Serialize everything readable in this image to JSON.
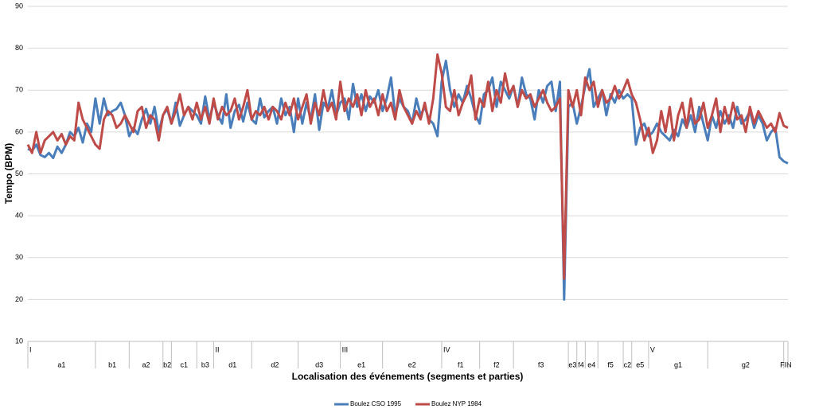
{
  "chart_data": {
    "type": "line",
    "y_label": "Tempo (BPM)",
    "x_label": "Localisation des événements (segments et parties)",
    "ylim": [
      10,
      90
    ],
    "yticks": [
      10,
      20,
      30,
      40,
      50,
      60,
      70,
      80,
      90
    ],
    "grid": true,
    "xlim": [
      0,
      180
    ],
    "x": [
      0,
      1,
      2,
      3,
      4,
      5,
      6,
      7,
      8,
      9,
      10,
      11,
      12,
      13,
      14,
      15,
      16,
      17,
      18,
      19,
      20,
      21,
      22,
      23,
      24,
      25,
      26,
      27,
      28,
      29,
      30,
      31,
      32,
      33,
      34,
      35,
      36,
      37,
      38,
      39,
      40,
      41,
      42,
      43,
      44,
      45,
      46,
      47,
      48,
      49,
      50,
      51,
      52,
      53,
      54,
      55,
      56,
      57,
      58,
      59,
      60,
      61,
      62,
      63,
      64,
      65,
      66,
      67,
      68,
      69,
      70,
      71,
      72,
      73,
      74,
      75,
      76,
      77,
      78,
      79,
      80,
      81,
      82,
      83,
      84,
      85,
      86,
      87,
      88,
      89,
      90,
      91,
      92,
      93,
      94,
      95,
      96,
      97,
      98,
      99,
      100,
      101,
      102,
      103,
      104,
      105,
      106,
      107,
      108,
      109,
      110,
      111,
      112,
      113,
      114,
      115,
      116,
      117,
      118,
      119,
      120,
      121,
      122,
      123,
      124,
      125,
      126,
      127,
      128,
      129,
      130,
      131,
      132,
      133,
      134,
      135,
      136,
      137,
      138,
      139,
      140,
      141,
      142,
      143,
      144,
      145,
      146,
      147,
      148,
      149,
      150,
      151,
      152,
      153,
      154,
      155,
      156,
      157,
      158,
      159,
      160,
      161,
      162,
      163,
      164,
      165,
      166,
      167,
      168,
      169,
      170,
      171,
      172,
      173,
      174,
      175,
      176,
      177,
      178,
      179,
      180
    ],
    "series": [
      {
        "name": "Boulez CSO 1995",
        "color": "#4a7ebb",
        "values": [
          56,
          55.5,
          57,
          54.5,
          54,
          55,
          53.8,
          56.5,
          55,
          57,
          60,
          59,
          61,
          57.5,
          62,
          60,
          68,
          62,
          68,
          64,
          65,
          65.5,
          67,
          64,
          59,
          61,
          59.5,
          63,
          65.5,
          62,
          66,
          60,
          64,
          65.5,
          62,
          67,
          61.5,
          64,
          66,
          65,
          64,
          62,
          68.5,
          63,
          67,
          64,
          62,
          69,
          61,
          65,
          66.5,
          62.5,
          67,
          63,
          62,
          68,
          63.5,
          65,
          66,
          62,
          68,
          64,
          66,
          60,
          68,
          62,
          67,
          63,
          69,
          60.5,
          67,
          65.5,
          70,
          64,
          67,
          68,
          63,
          71.5,
          66,
          69,
          65,
          68.5,
          67,
          70,
          65,
          68,
          73,
          64,
          68,
          66,
          65,
          62,
          68,
          64,
          66,
          63,
          62,
          59,
          72,
          77,
          70,
          66,
          69,
          67,
          71,
          68,
          64,
          62,
          69,
          70,
          73,
          66,
          72,
          70,
          68,
          71,
          66,
          73,
          69,
          68,
          63,
          70,
          67,
          71,
          72,
          65,
          72,
          20,
          66,
          67,
          62,
          66,
          71,
          75,
          66,
          68,
          70,
          64,
          69,
          67,
          70,
          68,
          69,
          68,
          57,
          61,
          62,
          59,
          60,
          62,
          60,
          59,
          58,
          60.5,
          59,
          63,
          61,
          64,
          60,
          66,
          62,
          58,
          64,
          61,
          65,
          62,
          64,
          61,
          66,
          62,
          63,
          65,
          61,
          64,
          62,
          58,
          60,
          61,
          54,
          53,
          52.5
        ]
      },
      {
        "name": "Boulez NYP 1984",
        "color": "#be4b48",
        "values": [
          57,
          55,
          60,
          55,
          58,
          59,
          60,
          58,
          59.5,
          57,
          59,
          58,
          67,
          63,
          61,
          59,
          57,
          56,
          63,
          65,
          64,
          61,
          62,
          64,
          62,
          60,
          65,
          66,
          61,
          64,
          63,
          58,
          64,
          66,
          62,
          65,
          69,
          64,
          66,
          63,
          67,
          63,
          66,
          62,
          68,
          63,
          66,
          64,
          65,
          68,
          63,
          66,
          70,
          63,
          65,
          64,
          66,
          63,
          66,
          65,
          63,
          67,
          64,
          68,
          63,
          66,
          69,
          62,
          67,
          64,
          70,
          65,
          67,
          63,
          72,
          65,
          68,
          66,
          69,
          64,
          70,
          66,
          68,
          64,
          69,
          65,
          67,
          63,
          70,
          66,
          64,
          62,
          65,
          63,
          67,
          62,
          68,
          78.5,
          74,
          66,
          65,
          70,
          64,
          67,
          69,
          73.5,
          63,
          68,
          66,
          72,
          65,
          70,
          67,
          74,
          69,
          71,
          66,
          70,
          68,
          69,
          66,
          68,
          70,
          67,
          65,
          66,
          68,
          25,
          70,
          66,
          70,
          64,
          73,
          70,
          72,
          66,
          70,
          67,
          68,
          71,
          68,
          70,
          72.5,
          69,
          67,
          63,
          58,
          61,
          55,
          58,
          65,
          60,
          66,
          58,
          64,
          67,
          61,
          68,
          62,
          63,
          67,
          61,
          64,
          68,
          60,
          66,
          62,
          67,
          63,
          64,
          60,
          66,
          62,
          65,
          63,
          61,
          62,
          60,
          64.5,
          61.5,
          61
        ]
      }
    ],
    "parts": [
      {
        "label": "I",
        "x": 0
      },
      {
        "label": "II",
        "x": 44
      },
      {
        "label": "III",
        "x": 74
      },
      {
        "label": "IV",
        "x": 98
      },
      {
        "label": "V",
        "x": 147
      }
    ],
    "segments": [
      {
        "label": "a1",
        "start": 0,
        "end": 16
      },
      {
        "label": "b1",
        "start": 16,
        "end": 24
      },
      {
        "label": "a2",
        "start": 24,
        "end": 32
      },
      {
        "label": "b2",
        "start": 32,
        "end": 34
      },
      {
        "label": "c1",
        "start": 34,
        "end": 40
      },
      {
        "label": "b3",
        "start": 40,
        "end": 44
      },
      {
        "label": "d1",
        "start": 44,
        "end": 53
      },
      {
        "label": "d2",
        "start": 53,
        "end": 64
      },
      {
        "label": "d3",
        "start": 64,
        "end": 74
      },
      {
        "label": "e1",
        "start": 74,
        "end": 84
      },
      {
        "label": "e2",
        "start": 84,
        "end": 98
      },
      {
        "label": "f1",
        "start": 98,
        "end": 107
      },
      {
        "label": "f2",
        "start": 107,
        "end": 115
      },
      {
        "label": "f3",
        "start": 115,
        "end": 128
      },
      {
        "label": "e3",
        "start": 128,
        "end": 130
      },
      {
        "label": "f4",
        "start": 130,
        "end": 132
      },
      {
        "label": "e4",
        "start": 132,
        "end": 135
      },
      {
        "label": "f5",
        "start": 135,
        "end": 141
      },
      {
        "label": "c2",
        "start": 141,
        "end": 143
      },
      {
        "label": "e5",
        "start": 143,
        "end": 147
      },
      {
        "label": "g1",
        "start": 147,
        "end": 161
      },
      {
        "label": "g2",
        "start": 161,
        "end": 179
      },
      {
        "label": "FIN",
        "start": 179,
        "end": 180
      }
    ]
  }
}
